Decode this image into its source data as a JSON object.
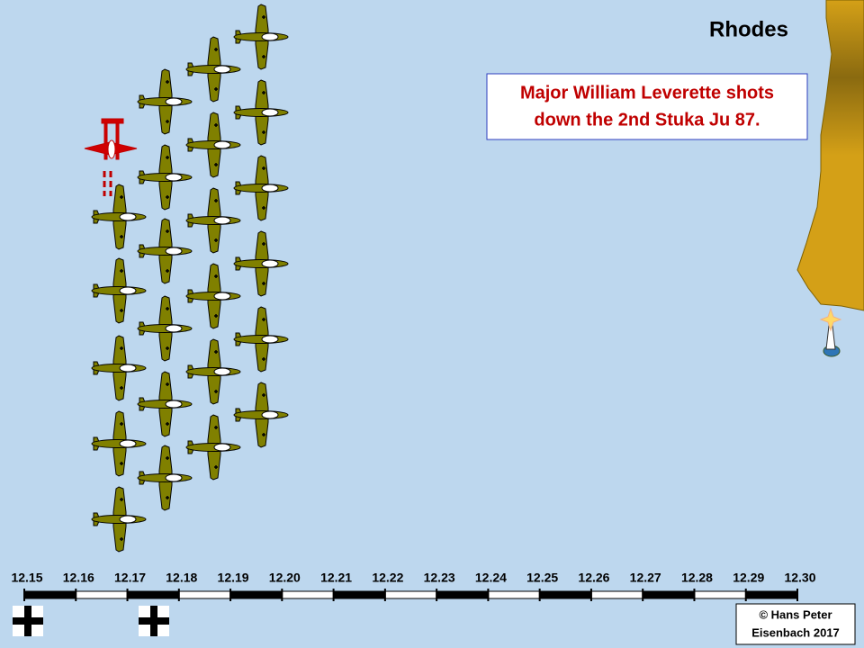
{
  "title": "Rhodes",
  "caption": [
    "Major William Leverette shots",
    "down the 2nd Stuka Ju 87."
  ],
  "timeline": {
    "labels": [
      "12.15",
      "12.16",
      "12.17",
      "12.18",
      "12.19",
      "12.20",
      "12.21",
      "12.22",
      "12.23",
      "12.24",
      "12.25",
      "12.26",
      "12.27",
      "12.28",
      "12.29",
      "12.30"
    ]
  },
  "credit": [
    "© Hans Peter",
    "Eisenbach 2017"
  ]
}
